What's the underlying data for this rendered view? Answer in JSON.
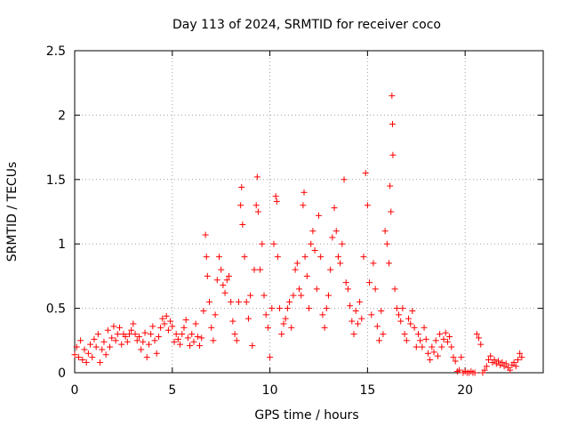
{
  "chart_data": {
    "type": "scatter",
    "title": "Day 113 of 2024, SRMTID for receiver coco",
    "xlabel": "GPS time / hours",
    "ylabel": "SRMTID / TECUs",
    "xlim": [
      0,
      24
    ],
    "ylim": [
      0,
      2.5
    ],
    "xticks": [
      0,
      5,
      10,
      15,
      20
    ],
    "xtick_labels": [
      "0",
      "5",
      "10",
      "15",
      "20"
    ],
    "yticks": [
      0,
      0.5,
      1,
      1.5,
      2,
      2.5
    ],
    "ytick_labels": [
      "0",
      "0.5",
      "1",
      "1.5",
      "2",
      "2.5"
    ],
    "grid": true,
    "marker": "+",
    "color": "#ff0000",
    "series": [
      {
        "name": "SRMTID",
        "points": [
          [
            0.0,
            0.14
          ],
          [
            0.1,
            0.2
          ],
          [
            0.2,
            0.12
          ],
          [
            0.3,
            0.25
          ],
          [
            0.4,
            0.1
          ],
          [
            0.5,
            0.18
          ],
          [
            0.6,
            0.08
          ],
          [
            0.7,
            0.15
          ],
          [
            0.8,
            0.22
          ],
          [
            0.9,
            0.12
          ],
          [
            1.0,
            0.26
          ],
          [
            1.1,
            0.2
          ],
          [
            1.2,
            0.3
          ],
          [
            1.3,
            0.08
          ],
          [
            1.4,
            0.18
          ],
          [
            1.5,
            0.24
          ],
          [
            1.6,
            0.14
          ],
          [
            1.7,
            0.33
          ],
          [
            1.8,
            0.2
          ],
          [
            1.9,
            0.27
          ],
          [
            2.0,
            0.36
          ],
          [
            2.1,
            0.25
          ],
          [
            2.2,
            0.3
          ],
          [
            2.3,
            0.35
          ],
          [
            2.4,
            0.22
          ],
          [
            2.5,
            0.3
          ],
          [
            2.6,
            0.28
          ],
          [
            2.7,
            0.24
          ],
          [
            2.8,
            0.3
          ],
          [
            2.9,
            0.33
          ],
          [
            3.0,
            0.38
          ],
          [
            3.1,
            0.3
          ],
          [
            3.2,
            0.25
          ],
          [
            3.3,
            0.28
          ],
          [
            3.4,
            0.18
          ],
          [
            3.5,
            0.24
          ],
          [
            3.6,
            0.31
          ],
          [
            3.7,
            0.12
          ],
          [
            3.8,
            0.22
          ],
          [
            3.9,
            0.3
          ],
          [
            4.0,
            0.36
          ],
          [
            4.1,
            0.25
          ],
          [
            4.2,
            0.15
          ],
          [
            4.3,
            0.28
          ],
          [
            4.4,
            0.35
          ],
          [
            4.5,
            0.42
          ],
          [
            4.6,
            0.38
          ],
          [
            4.7,
            0.44
          ],
          [
            4.8,
            0.33
          ],
          [
            4.9,
            0.4
          ],
          [
            5.0,
            0.36
          ],
          [
            5.1,
            0.24
          ],
          [
            5.2,
            0.3
          ],
          [
            5.3,
            0.26
          ],
          [
            5.4,
            0.22
          ],
          [
            5.5,
            0.3
          ],
          [
            5.6,
            0.35
          ],
          [
            5.7,
            0.41
          ],
          [
            5.8,
            0.27
          ],
          [
            5.9,
            0.21
          ],
          [
            6.0,
            0.3
          ],
          [
            6.1,
            0.24
          ],
          [
            6.2,
            0.38
          ],
          [
            6.3,
            0.28
          ],
          [
            6.4,
            0.21
          ],
          [
            6.5,
            0.27
          ],
          [
            6.6,
            0.48
          ],
          [
            6.7,
            1.07
          ],
          [
            6.75,
            0.9
          ],
          [
            6.8,
            0.75
          ],
          [
            6.9,
            0.55
          ],
          [
            7.0,
            0.35
          ],
          [
            7.1,
            0.25
          ],
          [
            7.2,
            0.45
          ],
          [
            7.3,
            0.72
          ],
          [
            7.4,
            0.9
          ],
          [
            7.5,
            0.8
          ],
          [
            7.6,
            0.68
          ],
          [
            7.7,
            0.62
          ],
          [
            7.8,
            0.72
          ],
          [
            7.9,
            0.75
          ],
          [
            8.0,
            0.55
          ],
          [
            8.1,
            0.4
          ],
          [
            8.2,
            0.3
          ],
          [
            8.3,
            0.25
          ],
          [
            8.4,
            0.55
          ],
          [
            8.5,
            1.3
          ],
          [
            8.55,
            1.44
          ],
          [
            8.6,
            1.15
          ],
          [
            8.7,
            0.9
          ],
          [
            8.8,
            0.55
          ],
          [
            8.9,
            0.42
          ],
          [
            9.0,
            0.6
          ],
          [
            9.1,
            0.21
          ],
          [
            9.2,
            0.8
          ],
          [
            9.3,
            1.3
          ],
          [
            9.35,
            1.52
          ],
          [
            9.4,
            1.25
          ],
          [
            9.5,
            0.8
          ],
          [
            9.6,
            1.0
          ],
          [
            9.7,
            0.6
          ],
          [
            9.8,
            0.45
          ],
          [
            9.9,
            0.35
          ],
          [
            10.0,
            0.12
          ],
          [
            10.1,
            0.5
          ],
          [
            10.2,
            1.0
          ],
          [
            10.3,
            1.37
          ],
          [
            10.35,
            1.33
          ],
          [
            10.4,
            0.9
          ],
          [
            10.5,
            0.5
          ],
          [
            10.6,
            0.3
          ],
          [
            10.7,
            0.38
          ],
          [
            10.8,
            0.42
          ],
          [
            10.9,
            0.5
          ],
          [
            11.0,
            0.55
          ],
          [
            11.1,
            0.35
          ],
          [
            11.2,
            0.6
          ],
          [
            11.3,
            0.8
          ],
          [
            11.4,
            0.85
          ],
          [
            11.5,
            0.65
          ],
          [
            11.6,
            0.6
          ],
          [
            11.7,
            1.3
          ],
          [
            11.75,
            1.4
          ],
          [
            11.8,
            0.9
          ],
          [
            11.9,
            0.75
          ],
          [
            12.0,
            0.5
          ],
          [
            12.1,
            1.0
          ],
          [
            12.2,
            1.1
          ],
          [
            12.3,
            0.95
          ],
          [
            12.4,
            0.65
          ],
          [
            12.5,
            1.22
          ],
          [
            12.6,
            0.9
          ],
          [
            12.7,
            0.45
          ],
          [
            12.8,
            0.35
          ],
          [
            12.9,
            0.5
          ],
          [
            13.0,
            0.6
          ],
          [
            13.1,
            0.8
          ],
          [
            13.2,
            1.05
          ],
          [
            13.3,
            1.28
          ],
          [
            13.4,
            1.1
          ],
          [
            13.5,
            0.9
          ],
          [
            13.6,
            0.85
          ],
          [
            13.7,
            1.0
          ],
          [
            13.8,
            1.5
          ],
          [
            13.9,
            0.7
          ],
          [
            14.0,
            0.65
          ],
          [
            14.1,
            0.52
          ],
          [
            14.2,
            0.4
          ],
          [
            14.3,
            0.3
          ],
          [
            14.4,
            0.48
          ],
          [
            14.5,
            0.38
          ],
          [
            14.6,
            0.55
          ],
          [
            14.7,
            0.42
          ],
          [
            14.8,
            0.9
          ],
          [
            14.9,
            1.55
          ],
          [
            15.0,
            1.3
          ],
          [
            15.1,
            0.7
          ],
          [
            15.2,
            0.45
          ],
          [
            15.3,
            0.85
          ],
          [
            15.4,
            0.65
          ],
          [
            15.5,
            0.36
          ],
          [
            15.6,
            0.25
          ],
          [
            15.7,
            0.48
          ],
          [
            15.8,
            0.3
          ],
          [
            15.9,
            1.1
          ],
          [
            16.0,
            1.0
          ],
          [
            16.1,
            0.85
          ],
          [
            16.15,
            1.45
          ],
          [
            16.2,
            1.25
          ],
          [
            16.25,
            2.15
          ],
          [
            16.28,
            1.93
          ],
          [
            16.3,
            1.69
          ],
          [
            16.4,
            0.65
          ],
          [
            16.5,
            0.5
          ],
          [
            16.6,
            0.45
          ],
          [
            16.7,
            0.4
          ],
          [
            16.8,
            0.5
          ],
          [
            16.9,
            0.3
          ],
          [
            17.0,
            0.25
          ],
          [
            17.1,
            0.42
          ],
          [
            17.2,
            0.38
          ],
          [
            17.3,
            0.48
          ],
          [
            17.4,
            0.35
          ],
          [
            17.5,
            0.2
          ],
          [
            17.6,
            0.3
          ],
          [
            17.7,
            0.25
          ],
          [
            17.8,
            0.2
          ],
          [
            17.9,
            0.35
          ],
          [
            18.0,
            0.26
          ],
          [
            18.1,
            0.15
          ],
          [
            18.2,
            0.1
          ],
          [
            18.3,
            0.2
          ],
          [
            18.4,
            0.16
          ],
          [
            18.5,
            0.25
          ],
          [
            18.6,
            0.13
          ],
          [
            18.7,
            0.3
          ],
          [
            18.8,
            0.2
          ],
          [
            18.9,
            0.26
          ],
          [
            19.0,
            0.31
          ],
          [
            19.1,
            0.24
          ],
          [
            19.2,
            0.28
          ],
          [
            19.3,
            0.2
          ],
          [
            19.4,
            0.12
          ],
          [
            19.5,
            0.09
          ],
          [
            19.6,
            0.01
          ],
          [
            19.7,
            0.02
          ],
          [
            19.8,
            0.12
          ],
          [
            19.9,
            0.0
          ],
          [
            20.0,
            0.01
          ],
          [
            20.1,
            0.0
          ],
          [
            20.2,
            0.0
          ],
          [
            20.3,
            0.01
          ],
          [
            20.4,
            0.0
          ],
          [
            20.5,
            0.0
          ],
          [
            20.6,
            0.3
          ],
          [
            20.7,
            0.27
          ],
          [
            20.8,
            0.22
          ],
          [
            20.9,
            0.0
          ],
          [
            21.0,
            0.02
          ],
          [
            21.1,
            0.05
          ],
          [
            21.2,
            0.1
          ],
          [
            21.3,
            0.13
          ],
          [
            21.4,
            0.08
          ],
          [
            21.5,
            0.1
          ],
          [
            21.6,
            0.07
          ],
          [
            21.7,
            0.09
          ],
          [
            21.8,
            0.06
          ],
          [
            21.9,
            0.08
          ],
          [
            22.0,
            0.05
          ],
          [
            22.1,
            0.07
          ],
          [
            22.2,
            0.04
          ],
          [
            22.3,
            0.02
          ],
          [
            22.4,
            0.06
          ],
          [
            22.5,
            0.08
          ],
          [
            22.6,
            0.05
          ],
          [
            22.7,
            0.1
          ],
          [
            22.8,
            0.15
          ],
          [
            22.9,
            0.12
          ]
        ]
      }
    ]
  }
}
